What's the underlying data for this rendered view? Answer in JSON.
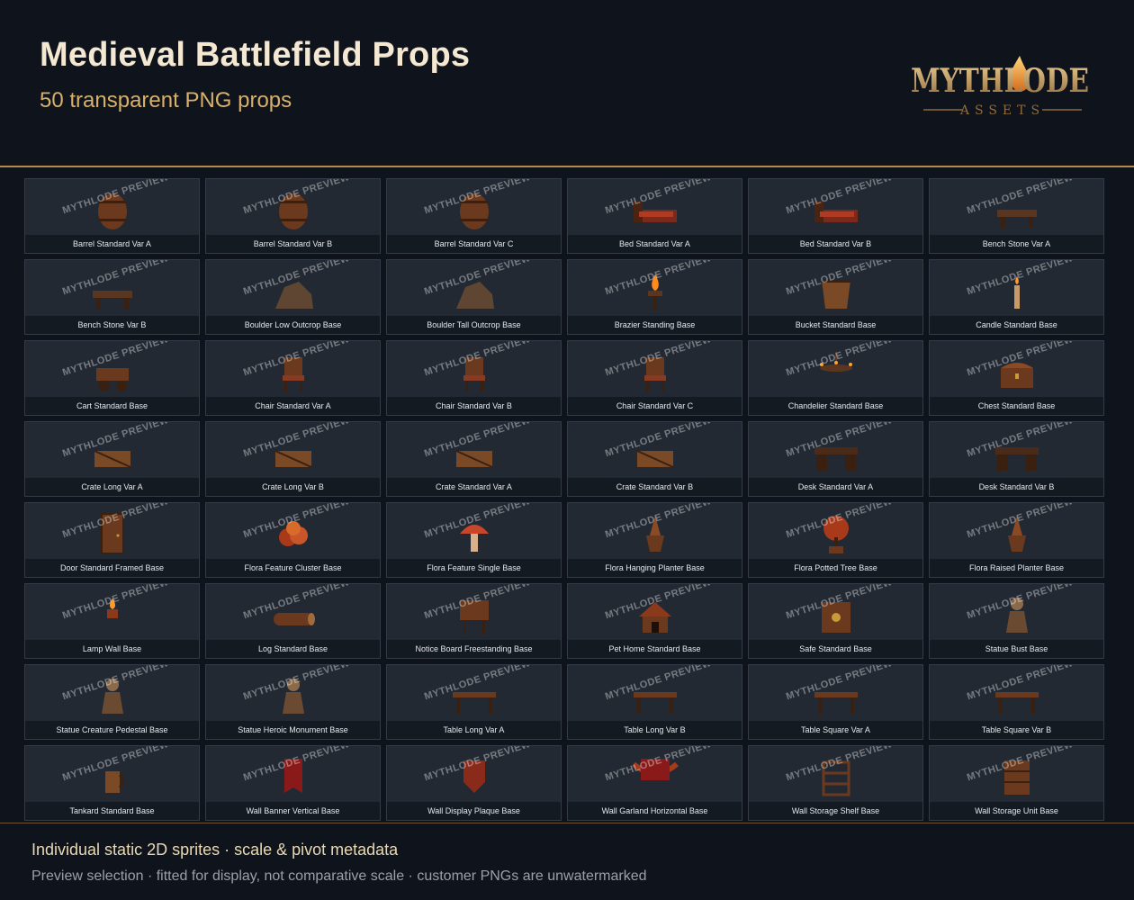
{
  "header": {
    "title": "Medieval Battlefield Props",
    "subtitle": "50 transparent PNG props",
    "logo_text": "MYTHLODE",
    "logo_subtext": "ASSETS"
  },
  "watermark": "MYTHLODE PREVIEW",
  "colors": {
    "background": "#0f141c",
    "accent_gold": "#d8b06a",
    "card_bg": "#222933",
    "label_bg": "#141a22"
  },
  "props": [
    {
      "label": "Barrel Standard Var A",
      "icon": "barrel-icon"
    },
    {
      "label": "Barrel Standard Var B",
      "icon": "barrel-icon"
    },
    {
      "label": "Barrel Standard Var C",
      "icon": "barrel-icon"
    },
    {
      "label": "Bed Standard Var A",
      "icon": "bed-icon"
    },
    {
      "label": "Bed Standard Var B",
      "icon": "bed-icon"
    },
    {
      "label": "Bench Stone Var A",
      "icon": "bench-icon"
    },
    {
      "label": "Bench Stone Var B",
      "icon": "bench-icon"
    },
    {
      "label": "Boulder Low Outcrop Base",
      "icon": "boulder-icon"
    },
    {
      "label": "Boulder Tall Outcrop Base",
      "icon": "boulder-icon"
    },
    {
      "label": "Brazier Standing Base",
      "icon": "brazier-icon"
    },
    {
      "label": "Bucket Standard Base",
      "icon": "bucket-icon"
    },
    {
      "label": "Candle Standard Base",
      "icon": "candle-icon"
    },
    {
      "label": "Cart Standard Base",
      "icon": "cart-icon"
    },
    {
      "label": "Chair Standard Var A",
      "icon": "chair-icon"
    },
    {
      "label": "Chair Standard Var B",
      "icon": "chair-icon"
    },
    {
      "label": "Chair Standard Var C",
      "icon": "chair-icon"
    },
    {
      "label": "Chandelier Standard Base",
      "icon": "chandelier-icon"
    },
    {
      "label": "Chest Standard Base",
      "icon": "chest-icon"
    },
    {
      "label": "Crate Long Var A",
      "icon": "crate-icon"
    },
    {
      "label": "Crate Long Var B",
      "icon": "crate-icon"
    },
    {
      "label": "Crate Standard Var A",
      "icon": "crate-icon"
    },
    {
      "label": "Crate Standard Var B",
      "icon": "crate-icon"
    },
    {
      "label": "Desk Standard Var A",
      "icon": "desk-icon"
    },
    {
      "label": "Desk Standard Var B",
      "icon": "desk-icon"
    },
    {
      "label": "Door Standard Framed Base",
      "icon": "door-icon"
    },
    {
      "label": "Flora Feature Cluster Base",
      "icon": "flora-icon"
    },
    {
      "label": "Flora Feature Single Base",
      "icon": "mushroom-icon"
    },
    {
      "label": "Flora Hanging Planter Base",
      "icon": "planter-icon"
    },
    {
      "label": "Flora Potted Tree Base",
      "icon": "tree-icon"
    },
    {
      "label": "Flora Raised Planter Base",
      "icon": "planter-icon"
    },
    {
      "label": "Lamp Wall Base",
      "icon": "lamp-icon"
    },
    {
      "label": "Log Standard Base",
      "icon": "log-icon"
    },
    {
      "label": "Notice Board Freestanding Base",
      "icon": "notice-board-icon"
    },
    {
      "label": "Pet Home Standard Base",
      "icon": "pet-home-icon"
    },
    {
      "label": "Safe Standard Base",
      "icon": "safe-icon"
    },
    {
      "label": "Statue Bust Base",
      "icon": "statue-icon"
    },
    {
      "label": "Statue Creature Pedestal Base",
      "icon": "statue-icon"
    },
    {
      "label": "Statue Heroic Monument Base",
      "icon": "statue-icon"
    },
    {
      "label": "Table Long Var A",
      "icon": "table-icon"
    },
    {
      "label": "Table Long Var B",
      "icon": "table-icon"
    },
    {
      "label": "Table Square Var A",
      "icon": "table-icon"
    },
    {
      "label": "Table Square Var B",
      "icon": "table-icon"
    },
    {
      "label": "Tankard Standard Base",
      "icon": "tankard-icon"
    },
    {
      "label": "Wall Banner Vertical Base",
      "icon": "banner-icon"
    },
    {
      "label": "Wall Display Plaque Base",
      "icon": "plaque-icon"
    },
    {
      "label": "Wall Garland Horizontal Base",
      "icon": "garland-icon"
    },
    {
      "label": "Wall Storage Shelf Base",
      "icon": "shelf-icon"
    },
    {
      "label": "Wall Storage Unit Base",
      "icon": "storage-unit-icon"
    }
  ],
  "footer": {
    "line1": "Individual static 2D sprites · scale & pivot metadata",
    "line2": "Preview selection · fitted for display, not comparative scale · customer PNGs are unwatermarked"
  }
}
